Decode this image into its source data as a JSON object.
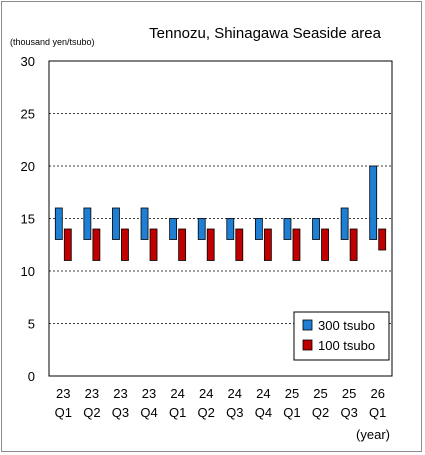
{
  "chart_data": {
    "type": "bar",
    "title": "Tennozu, Shinagawa Seaside area",
    "ylabel": "(thousand yen/tsubo)",
    "xlabel": "(year)",
    "ylim": [
      0,
      30
    ],
    "yticks": [
      0,
      5,
      10,
      15,
      20,
      25,
      30
    ],
    "grid": "horizontal-dashed",
    "legend_position": "bottom-right",
    "categories": [
      {
        "year": "23",
        "quarter": "Q1"
      },
      {
        "year": "23",
        "quarter": "Q2"
      },
      {
        "year": "23",
        "quarter": "Q3"
      },
      {
        "year": "23",
        "quarter": "Q4"
      },
      {
        "year": "24",
        "quarter": "Q1"
      },
      {
        "year": "24",
        "quarter": "Q2"
      },
      {
        "year": "24",
        "quarter": "Q3"
      },
      {
        "year": "24",
        "quarter": "Q4"
      },
      {
        "year": "25",
        "quarter": "Q1"
      },
      {
        "year": "25",
        "quarter": "Q2"
      },
      {
        "year": "25",
        "quarter": "Q3"
      },
      {
        "year": "26",
        "quarter": "Q1"
      }
    ],
    "series": [
      {
        "name": "300 tsubo",
        "color": "#1f7fd4",
        "ranges": [
          [
            13,
            16
          ],
          [
            13,
            16
          ],
          [
            13,
            16
          ],
          [
            13,
            16
          ],
          [
            13,
            15
          ],
          [
            13,
            15
          ],
          [
            13,
            15
          ],
          [
            13,
            15
          ],
          [
            13,
            15
          ],
          [
            13,
            15
          ],
          [
            13,
            16
          ],
          [
            13,
            20
          ]
        ]
      },
      {
        "name": "100 tsubo",
        "color": "#c00000",
        "ranges": [
          [
            11,
            14
          ],
          [
            11,
            14
          ],
          [
            11,
            14
          ],
          [
            11,
            14
          ],
          [
            11,
            14
          ],
          [
            11,
            14
          ],
          [
            11,
            14
          ],
          [
            11,
            14
          ],
          [
            11,
            14
          ],
          [
            11,
            14
          ],
          [
            11,
            14
          ],
          [
            12,
            14
          ]
        ]
      }
    ]
  }
}
